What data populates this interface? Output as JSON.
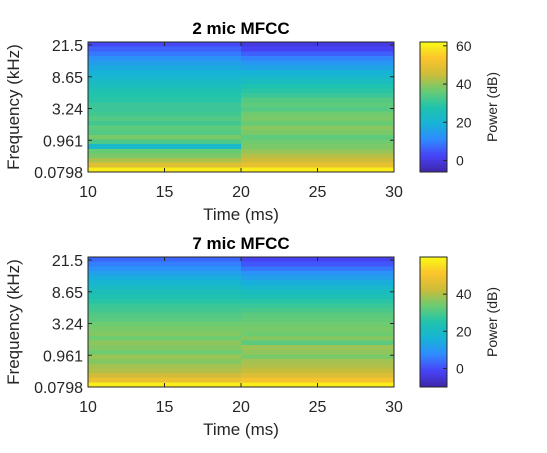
{
  "chart_data": [
    {
      "type": "heatmap",
      "title": "2 mic MFCC",
      "xlabel": "Time (ms)",
      "ylabel": "Frequency (kHz)",
      "xlim": [
        10,
        30
      ],
      "xticks": [
        10,
        15,
        20,
        25,
        30
      ],
      "yticks": [
        "21.5",
        "8.65",
        "3.24",
        "0.961",
        "0.0798"
      ],
      "x_segments": [
        [
          10,
          20
        ],
        [
          20,
          30
        ]
      ],
      "colorbar": {
        "label": "Power (dB)",
        "ticks": [
          0,
          20,
          40,
          60
        ],
        "clim": [
          -6,
          62
        ],
        "colormap": [
          "#3e26a8",
          "#4743f8",
          "#2f8bfe",
          "#16b4d6",
          "#20c3ac",
          "#6acb72",
          "#cdbc39",
          "#fbc42c",
          "#f9fb15"
        ]
      },
      "bands_from_top": [
        [
          3,
          0
        ],
        [
          6,
          2
        ],
        [
          9,
          6
        ],
        [
          12,
          10
        ],
        [
          15,
          13
        ],
        [
          17,
          16
        ],
        [
          19,
          19
        ],
        [
          21,
          22
        ],
        [
          23,
          24
        ],
        [
          25,
          27
        ],
        [
          27,
          29
        ],
        [
          28,
          31
        ],
        [
          29,
          34
        ],
        [
          31,
          35
        ],
        [
          31,
          34
        ],
        [
          32,
          37
        ],
        [
          34,
          38
        ],
        [
          32,
          36
        ],
        [
          35,
          39
        ],
        [
          34,
          38
        ],
        [
          38,
          35
        ],
        [
          33,
          37
        ],
        [
          22,
          38
        ],
        [
          36,
          40
        ],
        [
          38,
          43
        ],
        [
          42,
          45
        ],
        [
          48,
          50
        ],
        [
          60,
          60
        ]
      ]
    },
    {
      "type": "heatmap",
      "title": "7 mic MFCC",
      "xlabel": "Time (ms)",
      "ylabel": "Frequency (kHz)",
      "xlim": [
        10,
        30
      ],
      "xticks": [
        10,
        15,
        20,
        25,
        30
      ],
      "yticks": [
        "21.5",
        "8.65",
        "3.24",
        "0.961",
        "0.0798"
      ],
      "x_segments": [
        [
          10,
          20
        ],
        [
          20,
          30
        ]
      ],
      "colorbar": {
        "label": "Power (dB)",
        "ticks": [
          0,
          20,
          40
        ],
        "clim": [
          -10,
          60
        ],
        "colormap": [
          "#3e26a8",
          "#4743f8",
          "#2f8bfe",
          "#16b4d6",
          "#20c3ac",
          "#6acb72",
          "#cdbc39",
          "#fbc42c",
          "#f9fb15"
        ]
      },
      "bands_from_top": [
        [
          3,
          -2
        ],
        [
          6,
          1
        ],
        [
          9,
          5
        ],
        [
          12,
          9
        ],
        [
          15,
          12
        ],
        [
          17,
          15
        ],
        [
          20,
          18
        ],
        [
          22,
          21
        ],
        [
          24,
          23
        ],
        [
          26,
          26
        ],
        [
          28,
          28
        ],
        [
          29,
          30
        ],
        [
          31,
          32
        ],
        [
          32,
          33
        ],
        [
          34,
          34
        ],
        [
          35,
          35
        ],
        [
          36,
          34
        ],
        [
          34,
          36
        ],
        [
          37,
          32
        ],
        [
          36,
          38
        ],
        [
          34,
          37
        ],
        [
          38,
          35
        ],
        [
          36,
          39
        ],
        [
          39,
          40
        ],
        [
          40,
          42
        ],
        [
          43,
          45
        ],
        [
          48,
          50
        ],
        [
          58,
          58
        ]
      ]
    }
  ]
}
